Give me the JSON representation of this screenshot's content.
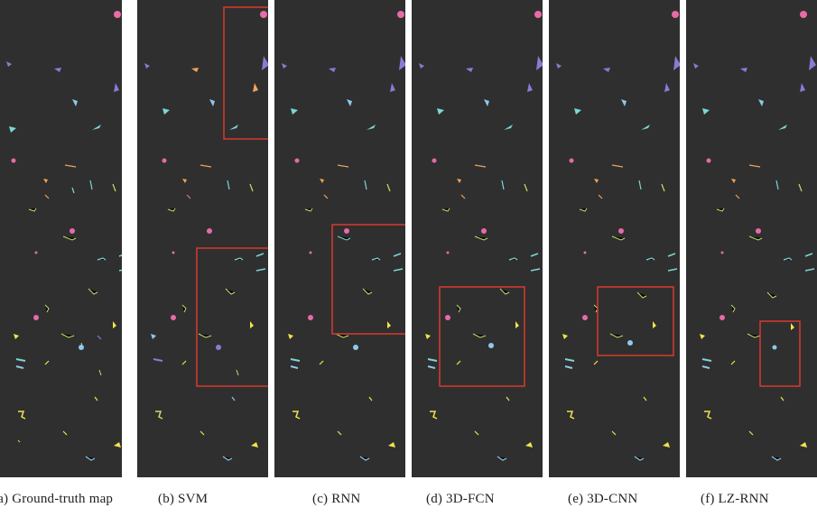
{
  "figure": {
    "panels": [
      {
        "id": "a",
        "caption": "(a) Ground-truth map",
        "has_box": false
      },
      {
        "id": "b",
        "caption": "(b) SVM",
        "has_box": true
      },
      {
        "id": "c",
        "caption": "(c) RNN",
        "has_box": true
      },
      {
        "id": "d",
        "caption": "(d) 3D-FCN",
        "has_box": true
      },
      {
        "id": "e",
        "caption": "(e) 3D-CNN",
        "has_box": true
      },
      {
        "id": "f",
        "caption": "(f) LZ-RNN",
        "has_box": true
      }
    ]
  },
  "colors": {
    "background": "#2f2f2f",
    "pink": "#e86aa8",
    "purple": "#8c7ad6",
    "cyan": "#7fd6d6",
    "orange": "#f0a35a",
    "yellow": "#f2e44a",
    "light_blue": "#8fc8ec",
    "lime": "#c7df6a",
    "highlight_box": "#d83a2e"
  }
}
